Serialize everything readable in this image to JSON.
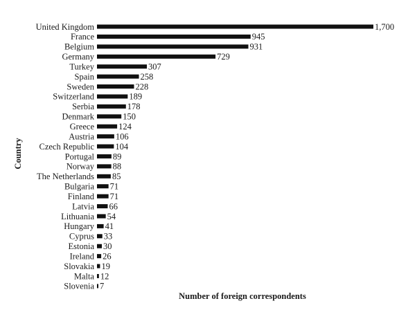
{
  "chart_data": {
    "type": "bar",
    "orientation": "horizontal",
    "title": "",
    "xlabel": "Number of foreign correspondents",
    "ylabel": "Country",
    "categories": [
      "United Kingdom",
      "France",
      "Belgium",
      "Germany",
      "Turkey",
      "Spain",
      "Sweden",
      "Switzerland",
      "Serbia",
      "Denmark",
      "Greece",
      "Austria",
      "Czech Republic",
      "Portugal",
      "Norway",
      "The Netherlands",
      "Bulgaria",
      "Finland",
      "Latvia",
      "Lithuania",
      "Hungary",
      "Cyprus",
      "Estonia",
      "Ireland",
      "Slovakia",
      "Malta",
      "Slovenia"
    ],
    "values": [
      1700,
      945,
      931,
      729,
      307,
      258,
      228,
      189,
      178,
      150,
      124,
      106,
      104,
      89,
      88,
      85,
      71,
      71,
      66,
      54,
      41,
      33,
      30,
      26,
      19,
      12,
      7
    ],
    "value_labels": [
      "1,700",
      "945",
      "931",
      "729",
      "307",
      "258",
      "228",
      "189",
      "178",
      "150",
      "124",
      "106",
      "104",
      "89",
      "88",
      "85",
      "71",
      "71",
      "66",
      "54",
      "41",
      "33",
      "30",
      "26",
      "19",
      "12",
      "7"
    ],
    "xlim": [
      0,
      1700
    ],
    "grid": false,
    "legend": "none",
    "bar_color": "#111111"
  }
}
